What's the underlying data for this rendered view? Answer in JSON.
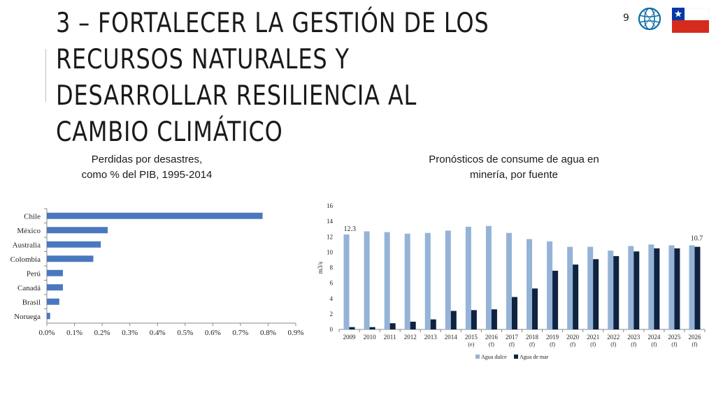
{
  "slide": {
    "title": "3 – FORTALECER LA GESTIÓN DE LOS RECURSOS NATURALES Y DESARROLLAR  RESILIENCIA AL CAMBIO CLIMÁTICO",
    "page_number": "9",
    "logo_icon": "world-bank-globe-icon",
    "flag_icon": "chile-flag-icon",
    "colors": {
      "bar_blue": "#4a78bf",
      "agua_dulce": "#95b3d7",
      "agua_mar": "#0f2340"
    }
  },
  "chart_data": [
    {
      "type": "bar",
      "orientation": "horizontal",
      "caption_line1": "Perdidas por desastres,",
      "caption_line2": "como % del PIB, 1995-2014",
      "categories": [
        "Chile",
        "México",
        "Australia",
        "Colombia",
        "Perú",
        "Canadá",
        "Brasil",
        "Noruega"
      ],
      "values": [
        0.78,
        0.22,
        0.195,
        0.168,
        0.058,
        0.058,
        0.045,
        0.012
      ],
      "xlim": [
        0,
        0.9
      ],
      "xticks": [
        "0.0%",
        "0.1%",
        "0.2%",
        "0.3%",
        "0.4%",
        "0.5%",
        "0.6%",
        "0.7%",
        "0.8%",
        "0.9%"
      ]
    },
    {
      "type": "bar",
      "caption_line1": "Pronósticos de consume de agua en",
      "caption_line2": "minería, por fuente",
      "ylabel": "m3/s",
      "ylim": [
        0,
        16
      ],
      "yticks": [
        "0",
        "2",
        "4",
        "6",
        "8",
        "10",
        "12",
        "14",
        "16"
      ],
      "categories": [
        "2009",
        "2010",
        "2011",
        "2012",
        "2013",
        "2014",
        "2015",
        "2016",
        "2017",
        "2018",
        "2019",
        "2020",
        "2021",
        "2022",
        "2023",
        "2024",
        "2025",
        "2026"
      ],
      "category_notes": [
        "",
        "",
        "",
        "",
        "",
        "",
        "(e)",
        "(f)",
        "(f)",
        "(f)",
        "(f)",
        "(f)",
        "(f)",
        "(f)",
        "(f)",
        "(f)",
        "(f)",
        "(f)"
      ],
      "series": [
        {
          "name": "Agua dulce",
          "values": [
            12.3,
            12.7,
            12.6,
            12.4,
            12.5,
            12.8,
            13.3,
            13.4,
            12.5,
            11.7,
            11.4,
            10.7,
            10.7,
            10.2,
            10.8,
            11.0,
            10.9,
            10.9
          ]
        },
        {
          "name": "Agua de mar",
          "values": [
            0.3,
            0.3,
            0.8,
            1.0,
            1.3,
            2.4,
            2.5,
            2.6,
            4.2,
            5.3,
            7.6,
            8.4,
            9.1,
            9.5,
            10.1,
            10.5,
            10.5,
            10.7
          ]
        }
      ],
      "data_labels": {
        "first": "12.3",
        "last": "10.7"
      },
      "legend": "bottom"
    }
  ]
}
